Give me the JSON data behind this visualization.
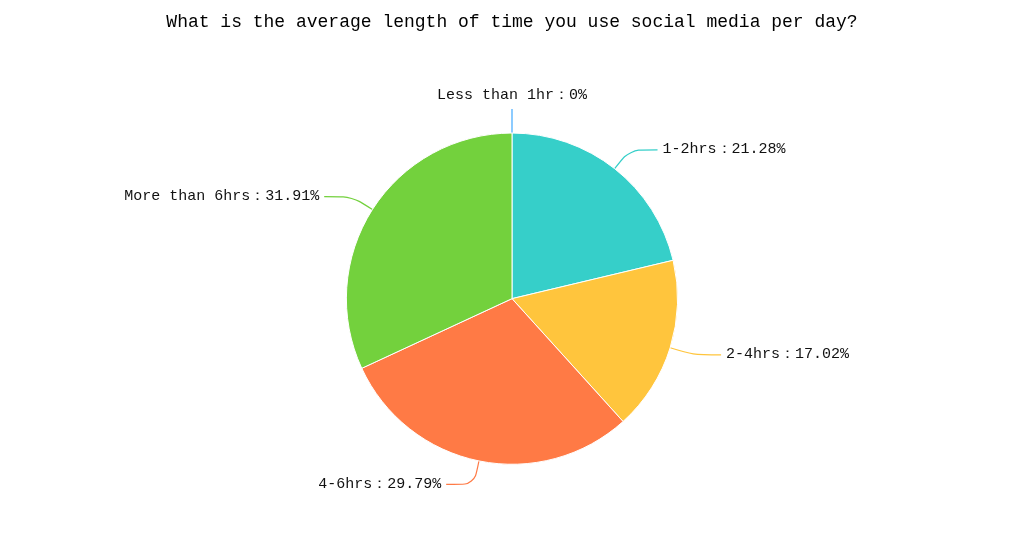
{
  "chart_data": {
    "type": "pie",
    "title": "What is the average length of time you use social media per day?",
    "categories": [
      "Less than 1hr",
      "1-2hrs",
      "2-4hrs",
      "4-6hrs",
      "More than 6hrs"
    ],
    "values": [
      0,
      21.28,
      17.02,
      29.79,
      31.91
    ],
    "value_labels": [
      "：0%",
      "：21.28%",
      "：17.02%",
      "：29.79%",
      "：31.91%"
    ],
    "colors": [
      "#40a9ff",
      "#36cfc9",
      "#ffc53d",
      "#ff7a45",
      "#73d13d"
    ],
    "legend": false
  }
}
